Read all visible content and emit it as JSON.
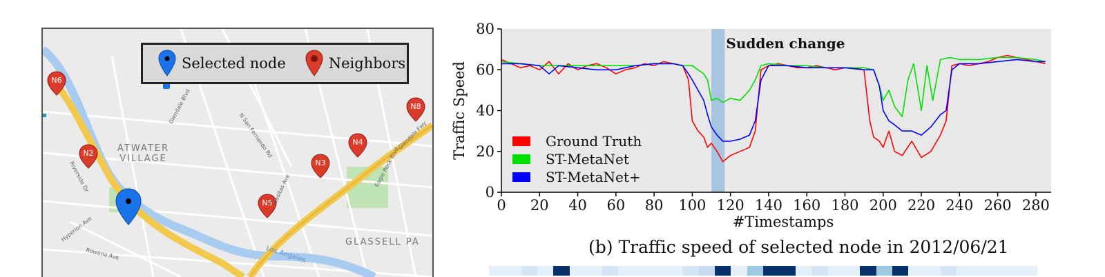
{
  "map": {
    "legend": {
      "selected_label": "Selected node",
      "neighbors_label": "Neighbors"
    },
    "area_labels": [
      "ATWATER\nVILLAGE",
      "GLASSELL PA"
    ],
    "street_labels": [
      "Glendale Blvd",
      "N San Fernando Rd",
      "Riverside Dr",
      "Hyperion Ave",
      "Rowena Ave",
      "Eagle Rock Blvd",
      "Glendale Fwy",
      "Los Angeles",
      "Casitas Ave"
    ],
    "neighbor_nodes": [
      "N6",
      "N2",
      "N3",
      "N4",
      "N5",
      "N8"
    ],
    "colors": {
      "selected": "#1a73e8",
      "neighbor": "#db3b2b",
      "freeway": "#f2c94c",
      "river": "#a8ccf0",
      "park": "#bfe3b4"
    }
  },
  "chart_data": {
    "type": "line",
    "title": "(b) Traffic speed of selected node in 2012/06/21",
    "xlabel": "#Timestamps",
    "ylabel": "Traffic Speed",
    "xlim": [
      0,
      288
    ],
    "ylim": [
      0,
      80
    ],
    "xticks": [
      0,
      20,
      40,
      60,
      80,
      100,
      120,
      140,
      160,
      180,
      200,
      220,
      240,
      260,
      280
    ],
    "yticks": [
      0,
      20,
      40,
      60,
      80
    ],
    "grid": false,
    "legend_position": "bottom-left",
    "annotation": {
      "text": "Sudden change",
      "x_range": [
        110,
        117
      ]
    },
    "series": [
      {
        "name": "Ground Truth",
        "color": "#ff0000",
        "x": [
          0,
          5,
          10,
          15,
          20,
          25,
          30,
          35,
          40,
          45,
          50,
          55,
          60,
          65,
          70,
          75,
          80,
          85,
          90,
          95,
          98,
          100,
          103,
          106,
          108,
          110,
          113,
          116,
          120,
          125,
          130,
          133,
          136,
          140,
          145,
          150,
          155,
          160,
          165,
          170,
          175,
          180,
          185,
          190,
          193,
          195,
          198,
          200,
          203,
          206,
          210,
          215,
          220,
          225,
          230,
          233,
          236,
          240,
          245,
          250,
          255,
          260,
          265,
          270,
          275,
          280,
          285
        ],
        "y": [
          65,
          63,
          61,
          62,
          60,
          64,
          58,
          63,
          60,
          62,
          63,
          61,
          58,
          60,
          61,
          63,
          62,
          64,
          63,
          62,
          55,
          35,
          30,
          27,
          22,
          24,
          20,
          15,
          18,
          20,
          22,
          30,
          60,
          62,
          63,
          62,
          61,
          61,
          62,
          61,
          60,
          61,
          61,
          60,
          35,
          27,
          25,
          22,
          30,
          20,
          18,
          25,
          17,
          20,
          28,
          35,
          62,
          63,
          62,
          63,
          64,
          66,
          67,
          66,
          65,
          64,
          63
        ]
      },
      {
        "name": "ST-MetaNet",
        "color": "#00e000",
        "x": [
          0,
          10,
          20,
          30,
          40,
          50,
          60,
          70,
          80,
          90,
          95,
          100,
          103,
          106,
          108,
          110,
          113,
          116,
          120,
          125,
          130,
          133,
          136,
          140,
          150,
          160,
          170,
          180,
          190,
          195,
          198,
          200,
          203,
          206,
          210,
          213,
          216,
          220,
          223,
          226,
          230,
          235,
          240,
          250,
          260,
          270,
          280,
          285
        ],
        "y": [
          64,
          63,
          62,
          62,
          62,
          62,
          62,
          62,
          63,
          63,
          62,
          62,
          60,
          58,
          55,
          45,
          46,
          44,
          46,
          45,
          50,
          55,
          62,
          63,
          62,
          62,
          61,
          61,
          61,
          60,
          52,
          45,
          50,
          42,
          37,
          55,
          63,
          40,
          62,
          45,
          65,
          66,
          65,
          65,
          66,
          66,
          65,
          64
        ]
      },
      {
        "name": "ST-MetaNet+",
        "color": "#0000ff",
        "x": [
          0,
          10,
          20,
          25,
          30,
          40,
          50,
          60,
          70,
          80,
          90,
          95,
          98,
          100,
          103,
          106,
          108,
          110,
          113,
          116,
          120,
          125,
          130,
          133,
          136,
          140,
          150,
          160,
          170,
          180,
          190,
          195,
          198,
          200,
          203,
          206,
          210,
          215,
          220,
          225,
          230,
          233,
          236,
          240,
          250,
          260,
          270,
          280,
          285
        ],
        "y": [
          63,
          63,
          62,
          58,
          62,
          61,
          60,
          60,
          62,
          63,
          63,
          62,
          58,
          55,
          50,
          45,
          38,
          32,
          28,
          25,
          25,
          26,
          28,
          35,
          55,
          62,
          62,
          61,
          61,
          61,
          60,
          60,
          52,
          40,
          35,
          33,
          30,
          30,
          28,
          32,
          38,
          40,
          60,
          63,
          63,
          64,
          65,
          64,
          64
        ]
      }
    ]
  },
  "heatmap_strip": {
    "cells": [
      "#e3f0fa",
      "#e3f0fa",
      "#d4e6f5",
      "#e3f0fa",
      "#08306b",
      "#e3f0fa",
      "#e3f0fa",
      "#d4e6f5",
      "#e3f0fa",
      "#e3f0fa",
      "#e3f0fa",
      "#e3f0fa",
      "#d4e6f5",
      "#c6dbef",
      "#08306b",
      "#e3f0fa",
      "#9ecae1",
      "#08306b",
      "#08306b",
      "#e3f0fa",
      "#d4e6f5",
      "#e3f0fa",
      "#e3f0fa",
      "#08306b",
      "#9ecae1",
      "#08306b",
      "#e3f0fa",
      "#e3f0fa",
      "#d4e6f5",
      "#e3f0fa",
      "#e3f0fa",
      "#e3f0fa",
      "#e3f0fa",
      "#e3f0fa"
    ]
  }
}
